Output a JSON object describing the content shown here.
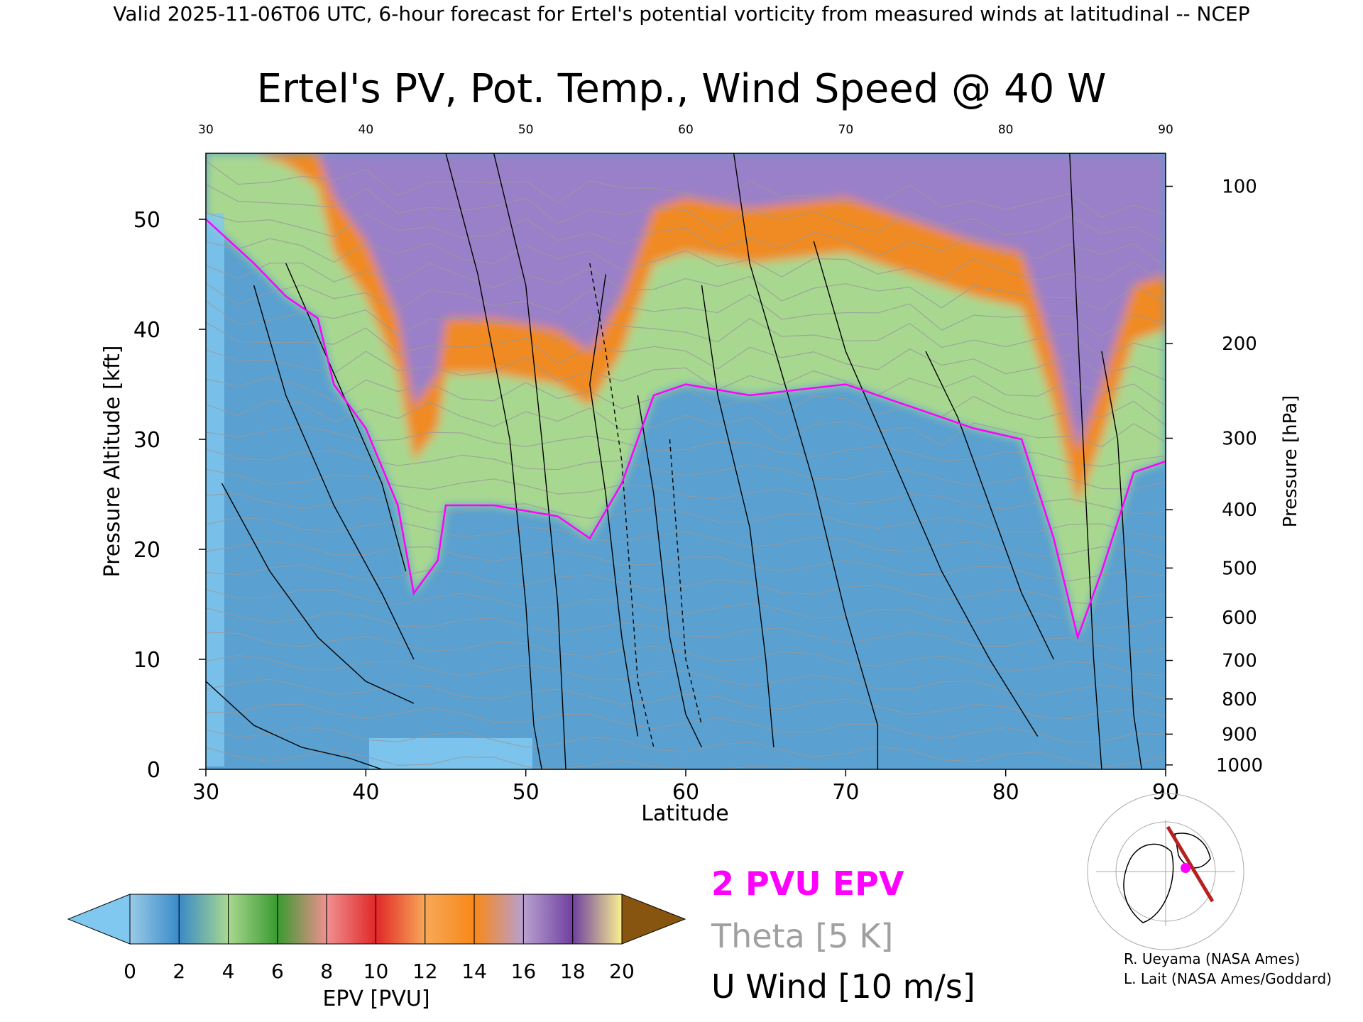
{
  "header": "Valid 2025-11-06T06 UTC, 6-hour forecast for Ertel's potential vorticity from measured winds at latitudinal -- NCEP",
  "chart_data": {
    "type": "heatmap",
    "title": "Ertel's PV, Pot. Temp., Wind Speed @ 40 W",
    "xlabel": "Latitude",
    "ylabel": "Pressure Altitude [kft]",
    "y2label": "Pressure [hPa]",
    "xlim": [
      30,
      90
    ],
    "ylim": [
      0,
      56
    ],
    "x_ticks": [
      30,
      40,
      50,
      60,
      70,
      80,
      90
    ],
    "y_ticks": [
      0,
      10,
      20,
      30,
      40,
      50
    ],
    "pressure_ticks": [
      {
        "label": "100",
        "kft": 53.0
      },
      {
        "label": "200",
        "kft": 38.7
      },
      {
        "label": "300",
        "kft": 30.1
      },
      {
        "label": "400",
        "kft": 23.6
      },
      {
        "label": "500",
        "kft": 18.3
      },
      {
        "label": "600",
        "kft": 13.8
      },
      {
        "label": "700",
        "kft": 9.9
      },
      {
        "label": "800",
        "kft": 6.4
      },
      {
        "label": "900",
        "kft": 3.2
      },
      {
        "label": "1000",
        "kft": 0.4
      }
    ],
    "tropopause_2pvu_kft": [
      {
        "lat": 30,
        "kft": 50
      },
      {
        "lat": 33,
        "kft": 46
      },
      {
        "lat": 35,
        "kft": 43
      },
      {
        "lat": 37,
        "kft": 41
      },
      {
        "lat": 38,
        "kft": 35
      },
      {
        "lat": 40,
        "kft": 31
      },
      {
        "lat": 42,
        "kft": 24
      },
      {
        "lat": 43,
        "kft": 16
      },
      {
        "lat": 44.5,
        "kft": 19
      },
      {
        "lat": 45,
        "kft": 24
      },
      {
        "lat": 48,
        "kft": 24
      },
      {
        "lat": 50,
        "kft": 23.5
      },
      {
        "lat": 52,
        "kft": 23
      },
      {
        "lat": 54,
        "kft": 21
      },
      {
        "lat": 56,
        "kft": 26
      },
      {
        "lat": 58,
        "kft": 34
      },
      {
        "lat": 60,
        "kft": 35
      },
      {
        "lat": 64,
        "kft": 34
      },
      {
        "lat": 70,
        "kft": 35
      },
      {
        "lat": 74,
        "kft": 33
      },
      {
        "lat": 78,
        "kft": 31
      },
      {
        "lat": 81,
        "kft": 30
      },
      {
        "lat": 83,
        "kft": 21
      },
      {
        "lat": 84.5,
        "kft": 12
      },
      {
        "lat": 86,
        "kft": 18
      },
      {
        "lat": 88,
        "kft": 27
      },
      {
        "lat": 90,
        "kft": 28
      }
    ],
    "colorbar": {
      "label": "EPV [PVU]",
      "ticks": [
        0,
        2,
        4,
        6,
        8,
        10,
        12,
        14,
        16,
        18,
        20
      ],
      "colors": [
        "#80c8f0",
        "#3a8ac8",
        "#a8d890",
        "#3a9a30",
        "#f09090",
        "#e02828",
        "#f8a858",
        "#f88818",
        "#b8a0d0",
        "#7040a0",
        "#f8f090",
        "#885510"
      ]
    },
    "legend": [
      {
        "label": "2 PVU EPV",
        "color": "#ff00ff"
      },
      {
        "label": "Theta [5 K]",
        "color": "#a0a0a0"
      },
      {
        "label": "U Wind [10 m/s]",
        "color": "#000000"
      }
    ]
  },
  "credits": [
    "R. Ueyama (NASA Ames)",
    "L. Lait (NASA Ames/Goddard)"
  ]
}
